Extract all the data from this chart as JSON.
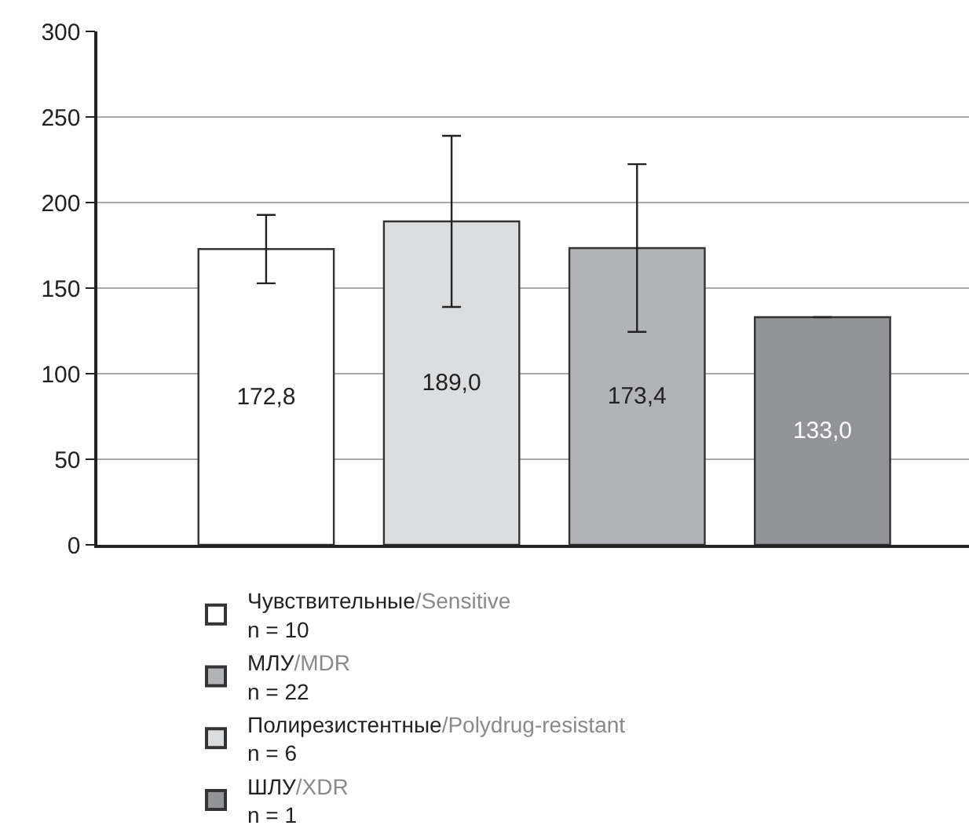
{
  "chart_data": {
    "type": "bar",
    "categories": [
      null,
      null,
      null,
      null
    ],
    "series": [
      {
        "name": "Чувствительные/Sensitive\nn = 10",
        "color": "#ffffff",
        "values": [
          172.8,
          null,
          null,
          null
        ],
        "errors": [
          20,
          null,
          null,
          null
        ],
        "value_labels": [
          "172,8",
          null,
          null,
          null
        ]
      },
      {
        "name": "Полирезистентные/Polydrug-resistant\nn = 6",
        "color": "#dcdddf",
        "values": [
          null,
          189.0,
          null,
          null
        ],
        "errors": [
          null,
          50,
          null,
          null
        ],
        "value_labels": [
          null,
          "189,0",
          null,
          null
        ]
      },
      {
        "name": "МЛУ/MDR\nn = 22",
        "color": "#b2b3b6",
        "values": [
          null,
          null,
          173.4,
          null
        ],
        "errors": [
          null,
          null,
          49,
          null
        ],
        "value_labels": [
          null,
          null,
          "173,4",
          null
        ]
      },
      {
        "name": "ШЛУ/XDR\nn = 1",
        "color": "#939497",
        "values": [
          null,
          null,
          null,
          133.0
        ],
        "errors": [
          null,
          null,
          null,
          null
        ],
        "value_labels": [
          null,
          null,
          null,
          "133,0"
        ]
      }
    ],
    "ylim": [
      0,
      300
    ],
    "yticks": [
      0,
      50,
      100,
      150,
      200,
      250,
      300
    ],
    "grid": "y",
    "legend": "bottom"
  }
}
